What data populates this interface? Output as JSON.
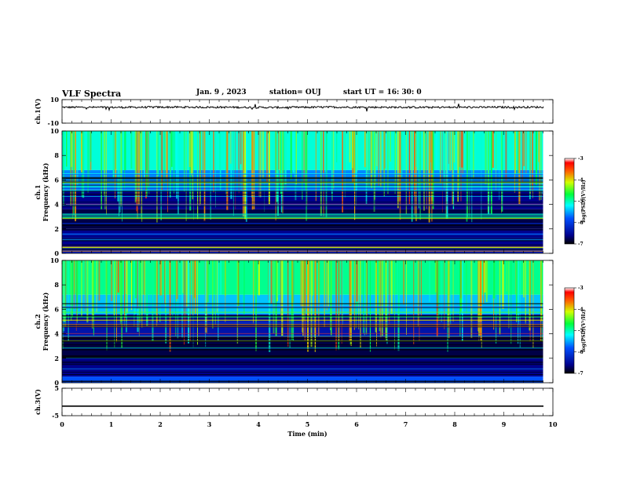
{
  "header": {
    "title": "VLF Spectra",
    "date": "Jan. 9 , 2023",
    "station": "station= OUJ",
    "start": "start UT = 16: 30: 0"
  },
  "chart_data": [
    {
      "type": "line",
      "panel": "ch1-waveform",
      "ylabel": "ch.1(V)",
      "yticks": [
        "10",
        "-10"
      ],
      "ylim": [
        -10,
        10
      ],
      "series": [
        {
          "values_description_level": 3.5,
          "values": [
            3.5,
            3.4,
            3.6,
            3.5,
            3.3,
            3.6,
            3.5,
            3.4,
            3.5,
            3.6
          ]
        }
      ],
      "color": "#000000"
    },
    {
      "type": "heatmap",
      "panel": "ch1-spectrogram",
      "ylabel": "ch.1 Frequency (kHz)",
      "yticks": [
        "0",
        "2",
        "4",
        "6",
        "8",
        "10"
      ],
      "ylim": [
        0,
        10
      ],
      "xlim": [
        0,
        10
      ],
      "colorbar": {
        "label": "log(PSD)(V²/Hz)",
        "ticks": [
          "-3",
          "-4",
          "-5",
          "-6",
          "-7"
        ],
        "range": [
          -7,
          -3
        ]
      },
      "bands": [
        {
          "from": 0,
          "to": 0.5,
          "level": -6.3
        },
        {
          "from": 0.5,
          "to": 2,
          "level": -6.6
        },
        {
          "from": 2,
          "to": 3.6,
          "level": -6.8
        },
        {
          "from": 3.6,
          "to": 5.2,
          "level": -6.6
        },
        {
          "from": 5.2,
          "to": 6.8,
          "level": -5.6
        },
        {
          "from": 6.8,
          "to": 10,
          "level": -5.1
        }
      ]
    },
    {
      "type": "heatmap",
      "panel": "ch2-spectrogram",
      "ylabel": "ch.2 Frequency (kHz)",
      "yticks": [
        "0",
        "2",
        "4",
        "6",
        "8",
        "10"
      ],
      "ylim": [
        0,
        10
      ],
      "xlim": [
        0,
        10
      ],
      "colorbar": {
        "label": "log(PSD)(V²/Hz)",
        "ticks": [
          "-3",
          "-4",
          "-5",
          "-6",
          "-7"
        ],
        "range": [
          -7,
          -3
        ]
      },
      "bands": [
        {
          "from": 0,
          "to": 0.5,
          "level": -5.8
        },
        {
          "from": 0.5,
          "to": 2,
          "level": -6.6
        },
        {
          "from": 2,
          "to": 3.8,
          "level": -6.8
        },
        {
          "from": 3.8,
          "to": 5.6,
          "level": -6.4
        },
        {
          "from": 5.6,
          "to": 7.2,
          "level": -5.4
        },
        {
          "from": 7.2,
          "to": 10,
          "level": -4.9
        }
      ]
    },
    {
      "type": "line",
      "panel": "ch3-waveform",
      "ylabel": "ch.3(V)",
      "yticks": [
        "5",
        "-5"
      ],
      "ylim": [
        -5,
        5
      ],
      "series": [
        {
          "values": [
            -1.5,
            -1.5,
            -1.5,
            -1.5,
            -1.5,
            -1.5,
            -1.5,
            -1.5,
            -1.5,
            -1.5
          ]
        }
      ],
      "color": "#000000"
    }
  ],
  "x_axis": {
    "label": "Time (min)",
    "ticks": [
      "0",
      "1",
      "2",
      "3",
      "4",
      "5",
      "6",
      "7",
      "8",
      "9",
      "10"
    ],
    "xlim": [
      0,
      10
    ],
    "data_end": 9.8
  }
}
